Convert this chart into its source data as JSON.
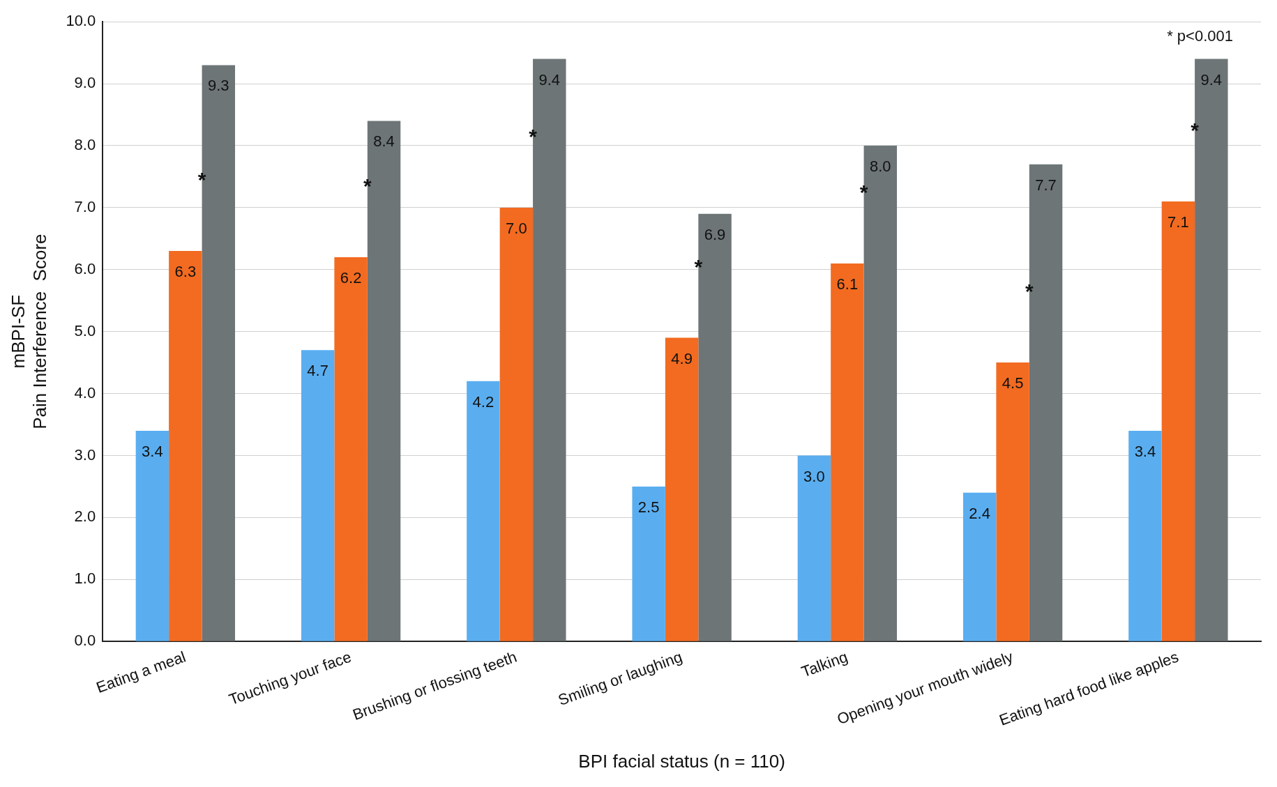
{
  "chart_data": {
    "type": "bar",
    "xlabel": "BPI facial status (n = 110)",
    "ylabel": "mBPI-SF\nPain Interference  Score",
    "categories": [
      "Eating a meal",
      "Touching your face",
      "Brushing or flossing teeth",
      "Smiling or laughing",
      "Talking",
      "Opening your mouth widely",
      "Eating hard food like apples"
    ],
    "series": [
      {
        "color": "#5aaef0",
        "values": [
          3.4,
          4.7,
          4.2,
          2.5,
          3.0,
          2.4,
          3.4
        ],
        "value_labels": [
          "3.4",
          "4.7",
          "4.2",
          "2.5",
          "3.0",
          "2.4",
          "3.4"
        ]
      },
      {
        "color": "#f26b21",
        "values": [
          6.3,
          6.2,
          7.0,
          4.9,
          6.1,
          4.5,
          7.1
        ],
        "value_labels": [
          "6.3",
          "6.2",
          "7.0",
          "4.9",
          "6.1",
          "4.5",
          "7.1"
        ]
      },
      {
        "color": "#6d7577",
        "values": [
          9.3,
          8.4,
          9.4,
          6.9,
          8.0,
          7.7,
          9.4
        ],
        "value_labels": [
          "9.3",
          "8.4",
          "9.4",
          "6.9",
          "8.0",
          "7.7",
          "9.4"
        ]
      }
    ],
    "ylim": [
      0,
      10
    ],
    "yticks": [
      {
        "value": 0,
        "label": "0.0"
      },
      {
        "value": 1,
        "label": "1.0"
      },
      {
        "value": 2,
        "label": "2.0"
      },
      {
        "value": 3,
        "label": "3.0"
      },
      {
        "value": 4,
        "label": "4.0"
      },
      {
        "value": 5,
        "label": "5.0"
      },
      {
        "value": 6,
        "label": "6.0"
      },
      {
        "value": 7,
        "label": "7.0"
      },
      {
        "value": 8,
        "label": "8.0"
      },
      {
        "value": 9,
        "label": "9.0"
      },
      {
        "value": 10,
        "label": "10.0"
      }
    ],
    "grid": "y",
    "legend": false,
    "annotations": [
      "*",
      "*",
      "*",
      "*",
      "*",
      "*",
      "*",
      "* p<0.001"
    ]
  }
}
